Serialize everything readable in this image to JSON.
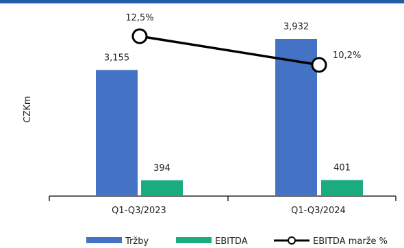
{
  "chart_data": {
    "type": "bar",
    "ylabel": "CZKm",
    "categories": [
      "Q1-Q3/2023",
      "Q1-Q3/2024"
    ],
    "series": [
      {
        "name": "Tržby",
        "values": [
          3155,
          3932
        ],
        "labels": [
          "3,155",
          "3,932"
        ],
        "color": "#4472c4"
      },
      {
        "name": "EBITDA",
        "values": [
          394,
          401
        ],
        "labels": [
          "394",
          "401"
        ],
        "color": "#1aab7f"
      }
    ],
    "line_series": {
      "name": "EBITDA marže %",
      "values": [
        12.5,
        10.2
      ],
      "labels": [
        "12,5%",
        "10,2%"
      ],
      "color": "#000000"
    },
    "ylim": [
      0,
      4500
    ],
    "grid": false,
    "legend_position": "bottom"
  }
}
